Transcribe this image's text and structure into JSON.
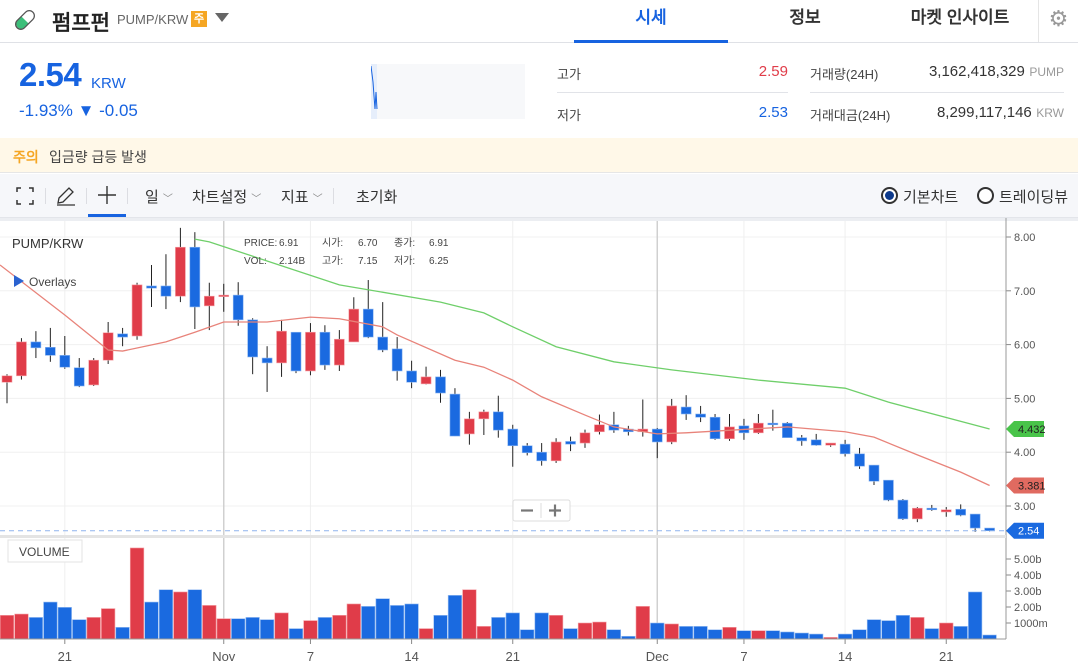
{
  "header": {
    "coin_icon": "pill-icon",
    "title": "펌프펀",
    "pair": "PUMP/KRW",
    "badge": "주",
    "tabs": [
      {
        "label": "시세",
        "active": true
      },
      {
        "label": "정보"
      },
      {
        "label": "마켓 인사이트"
      }
    ],
    "settings_icon": "gear-icon"
  },
  "ticker": {
    "price": "2.54",
    "unit": "KRW",
    "change": "-1.93% ▼ -0.05",
    "stats": {
      "high_label": "고가",
      "high": "2.59",
      "low_label": "저가",
      "low": "2.53",
      "volume_label": "거래량(24H)",
      "volume": "3,162,418,329",
      "volume_unit": "PUMP",
      "amount_label": "거래대금(24H)",
      "amount": "8,299,117,146",
      "amount_unit": "KRW"
    }
  },
  "warning": {
    "tag": "주의",
    "text": "입금량 급등 발생"
  },
  "toolbar": {
    "period": "일",
    "chart_settings": "차트설정",
    "indicators": "지표",
    "reset": "초기화",
    "radio_basic": "기본차트",
    "radio_tv": "트레이딩뷰",
    "selected": "기본차트"
  },
  "colors": {
    "up": "#e03c49",
    "down": "#1a6ae0",
    "ma_short": "#e8837a",
    "ma_long": "#6fcf6a",
    "accent": "#1763e0",
    "warning": "#f5a623"
  },
  "chart_data": {
    "type": "candlestick",
    "symbol": "PUMP/KRW",
    "overlays_label": "Overlays",
    "volume_label": "VOLUME",
    "tooltip": {
      "price_label": "PRICE:",
      "price": "6.91",
      "vol_label": "VOL:",
      "vol": "2.14B",
      "open_label": "시가:",
      "open": "6.70",
      "close_label": "종가:",
      "close": "6.91",
      "high_label": "고가:",
      "high": "7.15",
      "low_label": "저가:",
      "low": "6.25"
    },
    "y_ticks": [
      "8.00",
      "7.00",
      "6.00",
      "5.00",
      "4.00",
      "3.00"
    ],
    "ylim": [
      2.4,
      8.3
    ],
    "volume_ticks": [
      {
        "label": "5.00b",
        "v": 5
      },
      {
        "label": "4.00b",
        "v": 4
      },
      {
        "label": "3.00b",
        "v": 3
      },
      {
        "label": "2.00b",
        "v": 2
      },
      {
        "label": "1000m",
        "v": 1
      }
    ],
    "x_ticks": [
      {
        "label": "21",
        "date": "10-21"
      },
      {
        "label": "Nov",
        "date": "11-01",
        "month": true
      },
      {
        "label": "7",
        "date": "11-07"
      },
      {
        "label": "14",
        "date": "11-14"
      },
      {
        "label": "21",
        "date": "11-21"
      },
      {
        "label": "Dec",
        "date": "12-01",
        "month": true
      },
      {
        "label": "7",
        "date": "12-07"
      },
      {
        "label": "14",
        "date": "12-14"
      },
      {
        "label": "21",
        "date": "12-21"
      }
    ],
    "last_labels": {
      "ma_long": "4.432",
      "ma_short": "3.381",
      "price": "2.54"
    },
    "columns": [
      "date",
      "open",
      "high",
      "low",
      "close",
      "volume_b"
    ],
    "candles": [
      [
        "10-17",
        5.3,
        5.45,
        4.91,
        5.42,
        1.48
      ],
      [
        "10-18",
        5.42,
        6.12,
        5.35,
        6.05,
        1.56
      ],
      [
        "10-19",
        6.05,
        6.25,
        5.75,
        5.94,
        1.35
      ],
      [
        "10-20",
        5.95,
        6.31,
        5.68,
        5.8,
        2.31
      ],
      [
        "10-21",
        5.8,
        6.16,
        5.55,
        5.58,
        1.98
      ],
      [
        "10-22",
        5.57,
        5.75,
        5.21,
        5.23,
        1.21
      ],
      [
        "10-23",
        5.25,
        5.75,
        5.23,
        5.71,
        1.35
      ],
      [
        "10-24",
        5.71,
        6.42,
        5.64,
        6.22,
        1.9
      ],
      [
        "10-25",
        6.2,
        6.31,
        5.97,
        6.14,
        0.73
      ],
      [
        "10-26",
        6.16,
        7.15,
        6.09,
        7.11,
        5.69
      ],
      [
        "10-27",
        7.09,
        7.48,
        6.7,
        7.05,
        2.31
      ],
      [
        "10-28",
        7.09,
        7.68,
        6.66,
        6.9,
        3.08
      ],
      [
        "10-29",
        6.9,
        8.17,
        6.79,
        7.81,
        2.94
      ],
      [
        "10-30",
        7.81,
        8.09,
        6.29,
        6.7,
        3.08
      ],
      [
        "10-31",
        6.72,
        7.15,
        6.27,
        6.9,
        2.1
      ],
      [
        "11-01",
        6.91,
        7.13,
        6.61,
        6.92,
        1.27
      ],
      [
        "11-02",
        6.92,
        7.16,
        6.35,
        6.46,
        1.27
      ],
      [
        "11-03",
        6.46,
        6.49,
        5.45,
        5.77,
        1.35
      ],
      [
        "11-04",
        5.75,
        5.97,
        5.12,
        5.66,
        1.21
      ],
      [
        "11-05",
        5.66,
        6.46,
        5.4,
        6.25,
        1.63
      ],
      [
        "11-06",
        6.23,
        6.23,
        5.47,
        5.51,
        0.65
      ],
      [
        "11-07",
        5.51,
        6.4,
        5.43,
        6.23,
        1.15
      ],
      [
        "11-08",
        6.23,
        6.36,
        5.53,
        5.62,
        1.35
      ],
      [
        "11-09",
        5.62,
        6.27,
        5.51,
        6.1,
        1.48
      ],
      [
        "11-10",
        6.05,
        6.88,
        6.05,
        6.66,
        2.19
      ],
      [
        "11-11",
        6.66,
        7.2,
        6.12,
        6.14,
        2.04
      ],
      [
        "11-12",
        6.14,
        6.79,
        5.86,
        5.9,
        2.52
      ],
      [
        "11-13",
        5.92,
        6.14,
        5.33,
        5.51,
        2.1
      ],
      [
        "11-14",
        5.51,
        5.7,
        5.19,
        5.3,
        2.19
      ],
      [
        "11-15",
        5.27,
        5.59,
        5.26,
        5.4,
        0.65
      ],
      [
        "11-16",
        5.4,
        5.53,
        4.92,
        5.1,
        1.48
      ],
      [
        "11-17",
        5.08,
        5.19,
        4.3,
        4.3,
        2.73
      ],
      [
        "11-18",
        4.34,
        4.75,
        4.14,
        4.62,
        3.08
      ],
      [
        "11-19",
        4.62,
        4.79,
        4.32,
        4.75,
        0.79
      ],
      [
        "11-20",
        4.75,
        5.05,
        4.27,
        4.41,
        1.35
      ],
      [
        "11-21",
        4.43,
        4.51,
        3.73,
        4.12,
        1.63
      ],
      [
        "11-22",
        4.12,
        4.17,
        3.94,
        3.99,
        0.58
      ],
      [
        "11-23",
        4.0,
        4.17,
        3.75,
        3.84,
        1.63
      ],
      [
        "11-24",
        3.84,
        4.26,
        3.8,
        4.19,
        1.48
      ],
      [
        "11-25",
        4.2,
        4.29,
        4.02,
        4.15,
        0.65
      ],
      [
        "11-26",
        4.17,
        4.42,
        4.08,
        4.36,
        1.0
      ],
      [
        "11-27",
        4.38,
        4.7,
        4.33,
        4.51,
        1.06
      ],
      [
        "11-28",
        4.51,
        4.75,
        4.36,
        4.41,
        0.58
      ],
      [
        "11-29",
        4.43,
        4.49,
        4.31,
        4.38,
        0.17
      ],
      [
        "11-30",
        4.38,
        4.98,
        4.29,
        4.43,
        2.04
      ],
      [
        "12-01",
        4.43,
        4.45,
        3.89,
        4.19,
        1.0
      ],
      [
        "12-02",
        4.19,
        4.99,
        4.15,
        4.86,
        0.94
      ],
      [
        "12-03",
        4.84,
        5.06,
        4.6,
        4.71,
        0.79
      ],
      [
        "12-04",
        4.71,
        4.86,
        4.56,
        4.65,
        0.79
      ],
      [
        "12-05",
        4.65,
        4.71,
        4.23,
        4.25,
        0.58
      ],
      [
        "12-06",
        4.25,
        4.71,
        4.21,
        4.47,
        0.73
      ],
      [
        "12-07",
        4.49,
        4.62,
        4.23,
        4.36,
        0.52
      ],
      [
        "12-08",
        4.36,
        4.71,
        4.34,
        4.54,
        0.52
      ],
      [
        "12-09",
        4.54,
        4.79,
        4.4,
        4.51,
        0.52
      ],
      [
        "12-10",
        4.54,
        4.56,
        4.27,
        4.27,
        0.44
      ],
      [
        "12-11",
        4.27,
        4.32,
        4.12,
        4.21,
        0.375
      ],
      [
        "12-12",
        4.23,
        4.34,
        4.12,
        4.13,
        0.31
      ],
      [
        "12-13",
        4.13,
        4.17,
        4.1,
        4.17,
        0.1
      ],
      [
        "12-14",
        4.15,
        4.23,
        3.92,
        3.97,
        0.31
      ],
      [
        "12-15",
        3.97,
        4.08,
        3.69,
        3.74,
        0.58
      ],
      [
        "12-16",
        3.76,
        3.76,
        3.39,
        3.46,
        1.21
      ],
      [
        "12-17",
        3.48,
        3.48,
        3.09,
        3.11,
        1.15
      ],
      [
        "12-18",
        3.11,
        3.13,
        2.74,
        2.76,
        1.48
      ],
      [
        "12-19",
        2.76,
        2.98,
        2.7,
        2.96,
        1.35
      ],
      [
        "12-20",
        2.96,
        3.02,
        2.91,
        2.93,
        0.65
      ],
      [
        "12-21",
        2.89,
        2.98,
        2.8,
        2.93,
        1.0
      ],
      [
        "12-22",
        2.94,
        3.03,
        2.81,
        2.83,
        0.79
      ],
      [
        "12-23",
        2.85,
        2.85,
        2.52,
        2.59,
        2.94
      ],
      [
        "12-24",
        2.59,
        2.59,
        2.53,
        2.54,
        0.25
      ]
    ],
    "ma_short": [
      [
        "10-17",
        7.48
      ],
      [
        "10-21",
        6.55
      ],
      [
        "10-24",
        5.9
      ],
      [
        "10-25",
        5.88
      ],
      [
        "10-28",
        6.05
      ],
      [
        "10-30",
        6.23
      ],
      [
        "11-01",
        6.42
      ],
      [
        "11-04",
        6.42
      ],
      [
        "11-07",
        6.51
      ],
      [
        "11-09",
        6.48
      ],
      [
        "11-12",
        6.33
      ],
      [
        "11-13",
        6.18
      ],
      [
        "11-17",
        5.71
      ],
      [
        "11-19",
        5.58
      ],
      [
        "11-21",
        5.34
      ],
      [
        "11-23",
        5.03
      ],
      [
        "11-26",
        4.69
      ],
      [
        "11-28",
        4.47
      ],
      [
        "12-01",
        4.34
      ],
      [
        "12-03",
        4.36
      ],
      [
        "12-10",
        4.47
      ],
      [
        "12-14",
        4.38
      ],
      [
        "12-16",
        4.28
      ],
      [
        "12-19",
        3.95
      ],
      [
        "12-22",
        3.63
      ],
      [
        "12-24",
        3.381
      ]
    ],
    "ma_long": [
      [
        "10-30",
        7.96
      ],
      [
        "10-31",
        7.91
      ],
      [
        "11-09",
        7.11
      ],
      [
        "11-16",
        6.79
      ],
      [
        "11-19",
        6.59
      ],
      [
        "11-21",
        6.33
      ],
      [
        "11-24",
        5.96
      ],
      [
        "11-28",
        5.68
      ],
      [
        "12-02",
        5.53
      ],
      [
        "12-08",
        5.34
      ],
      [
        "12-14",
        5.19
      ],
      [
        "12-17",
        4.93
      ],
      [
        "12-24",
        4.432
      ]
    ]
  }
}
